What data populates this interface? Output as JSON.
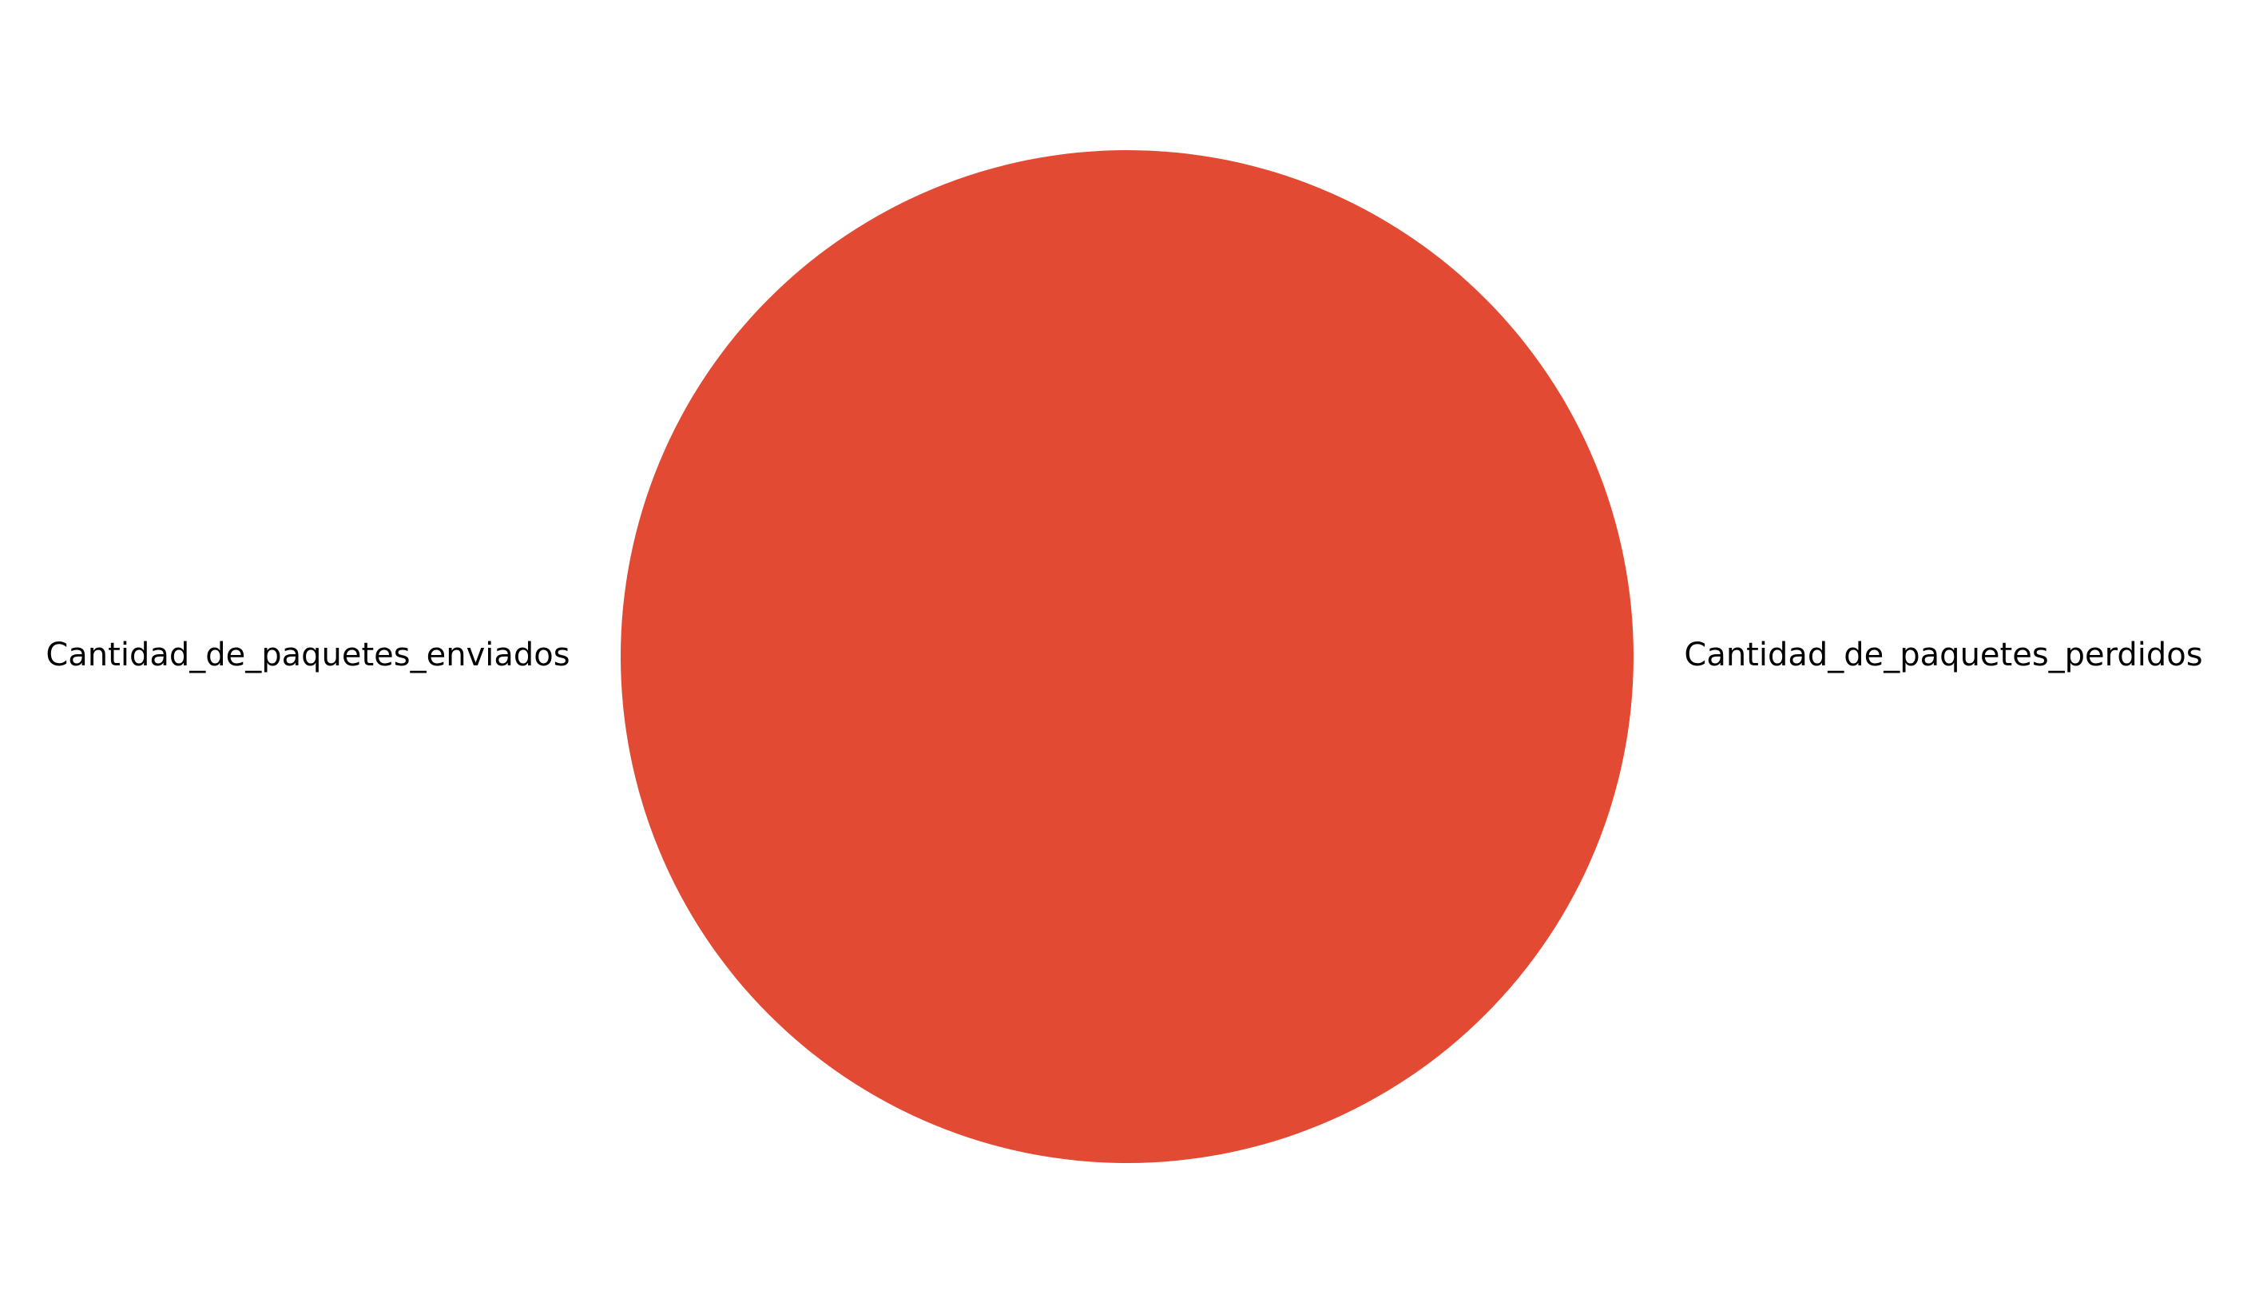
{
  "chart_data": {
    "type": "pie",
    "title": "",
    "slices": [
      {
        "label": "Cantidad_de_paquetes_enviados",
        "value": 1,
        "color": "#E24A33"
      },
      {
        "label": "Cantidad_de_paquetes_perdidos",
        "value": 0,
        "color": "#348ABD"
      }
    ],
    "start_angle_deg": 0,
    "direction": "counterclockwise",
    "legend": "none"
  }
}
